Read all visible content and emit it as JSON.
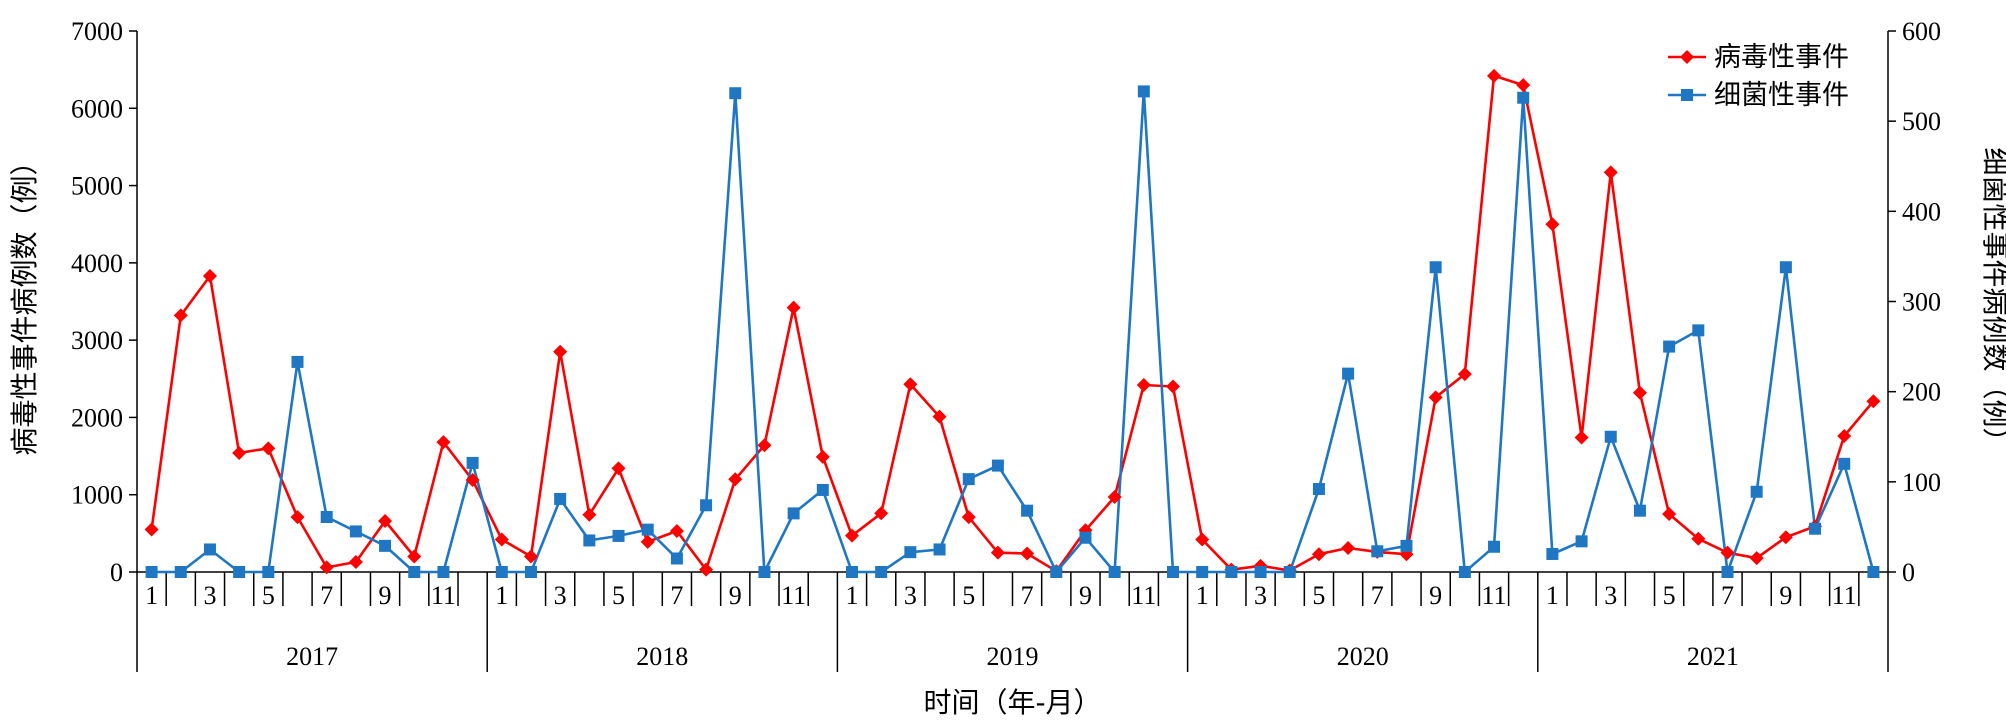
{
  "chart_data": {
    "type": "line",
    "xlabel": "时间（年-月）",
    "ylabel_left": "病毒性事件病例数（例）",
    "ylabel_right": "细菌性事件病例数（例）",
    "ylim_left": [
      0,
      7000
    ],
    "ylim_right": [
      0,
      600
    ],
    "yticks_left": [
      "0",
      "1000",
      "2000",
      "3000",
      "4000",
      "5000",
      "6000",
      "7000"
    ],
    "yticks_right": [
      "0",
      "100",
      "200",
      "300",
      "400",
      "500",
      "600"
    ],
    "years": [
      "2017",
      "2018",
      "2019",
      "2020",
      "2021"
    ],
    "month_ticks": [
      "1",
      "3",
      "5",
      "7",
      "9",
      "11"
    ],
    "legend_position": "top-right",
    "colors": {
      "viral": "#ff0000",
      "bacterial": "#1f77c4"
    },
    "series": [
      {
        "name": "病毒性事件",
        "axis": "left",
        "marker": "diamond",
        "values": [
          550,
          3320,
          3830,
          1540,
          1600,
          710,
          60,
          130,
          660,
          200,
          1680,
          1190,
          420,
          200,
          2850,
          740,
          1340,
          390,
          530,
          30,
          1200,
          1640,
          3420,
          1490,
          470,
          760,
          2430,
          2010,
          710,
          250,
          240,
          10,
          540,
          970,
          2420,
          2400,
          420,
          30,
          80,
          20,
          230,
          310,
          260,
          230,
          2260,
          2560,
          6420,
          6300,
          4500,
          1740,
          5170,
          2320,
          750,
          430,
          250,
          180,
          450,
          590,
          1760,
          2210
        ]
      },
      {
        "name": "细菌性事件",
        "axis": "right",
        "marker": "square",
        "values": [
          0,
          0,
          25,
          0,
          0,
          233,
          61,
          45,
          29,
          0,
          0,
          121,
          0,
          0,
          81,
          35,
          40,
          47,
          15,
          74,
          531,
          0,
          65,
          91,
          0,
          0,
          22,
          25,
          103,
          118,
          68,
          0,
          38,
          0,
          533,
          0,
          0,
          0,
          0,
          0,
          92,
          220,
          23,
          29,
          338,
          0,
          28,
          526,
          20,
          34,
          150,
          68,
          250,
          268,
          0,
          89,
          338,
          48,
          120,
          0
        ]
      }
    ]
  }
}
